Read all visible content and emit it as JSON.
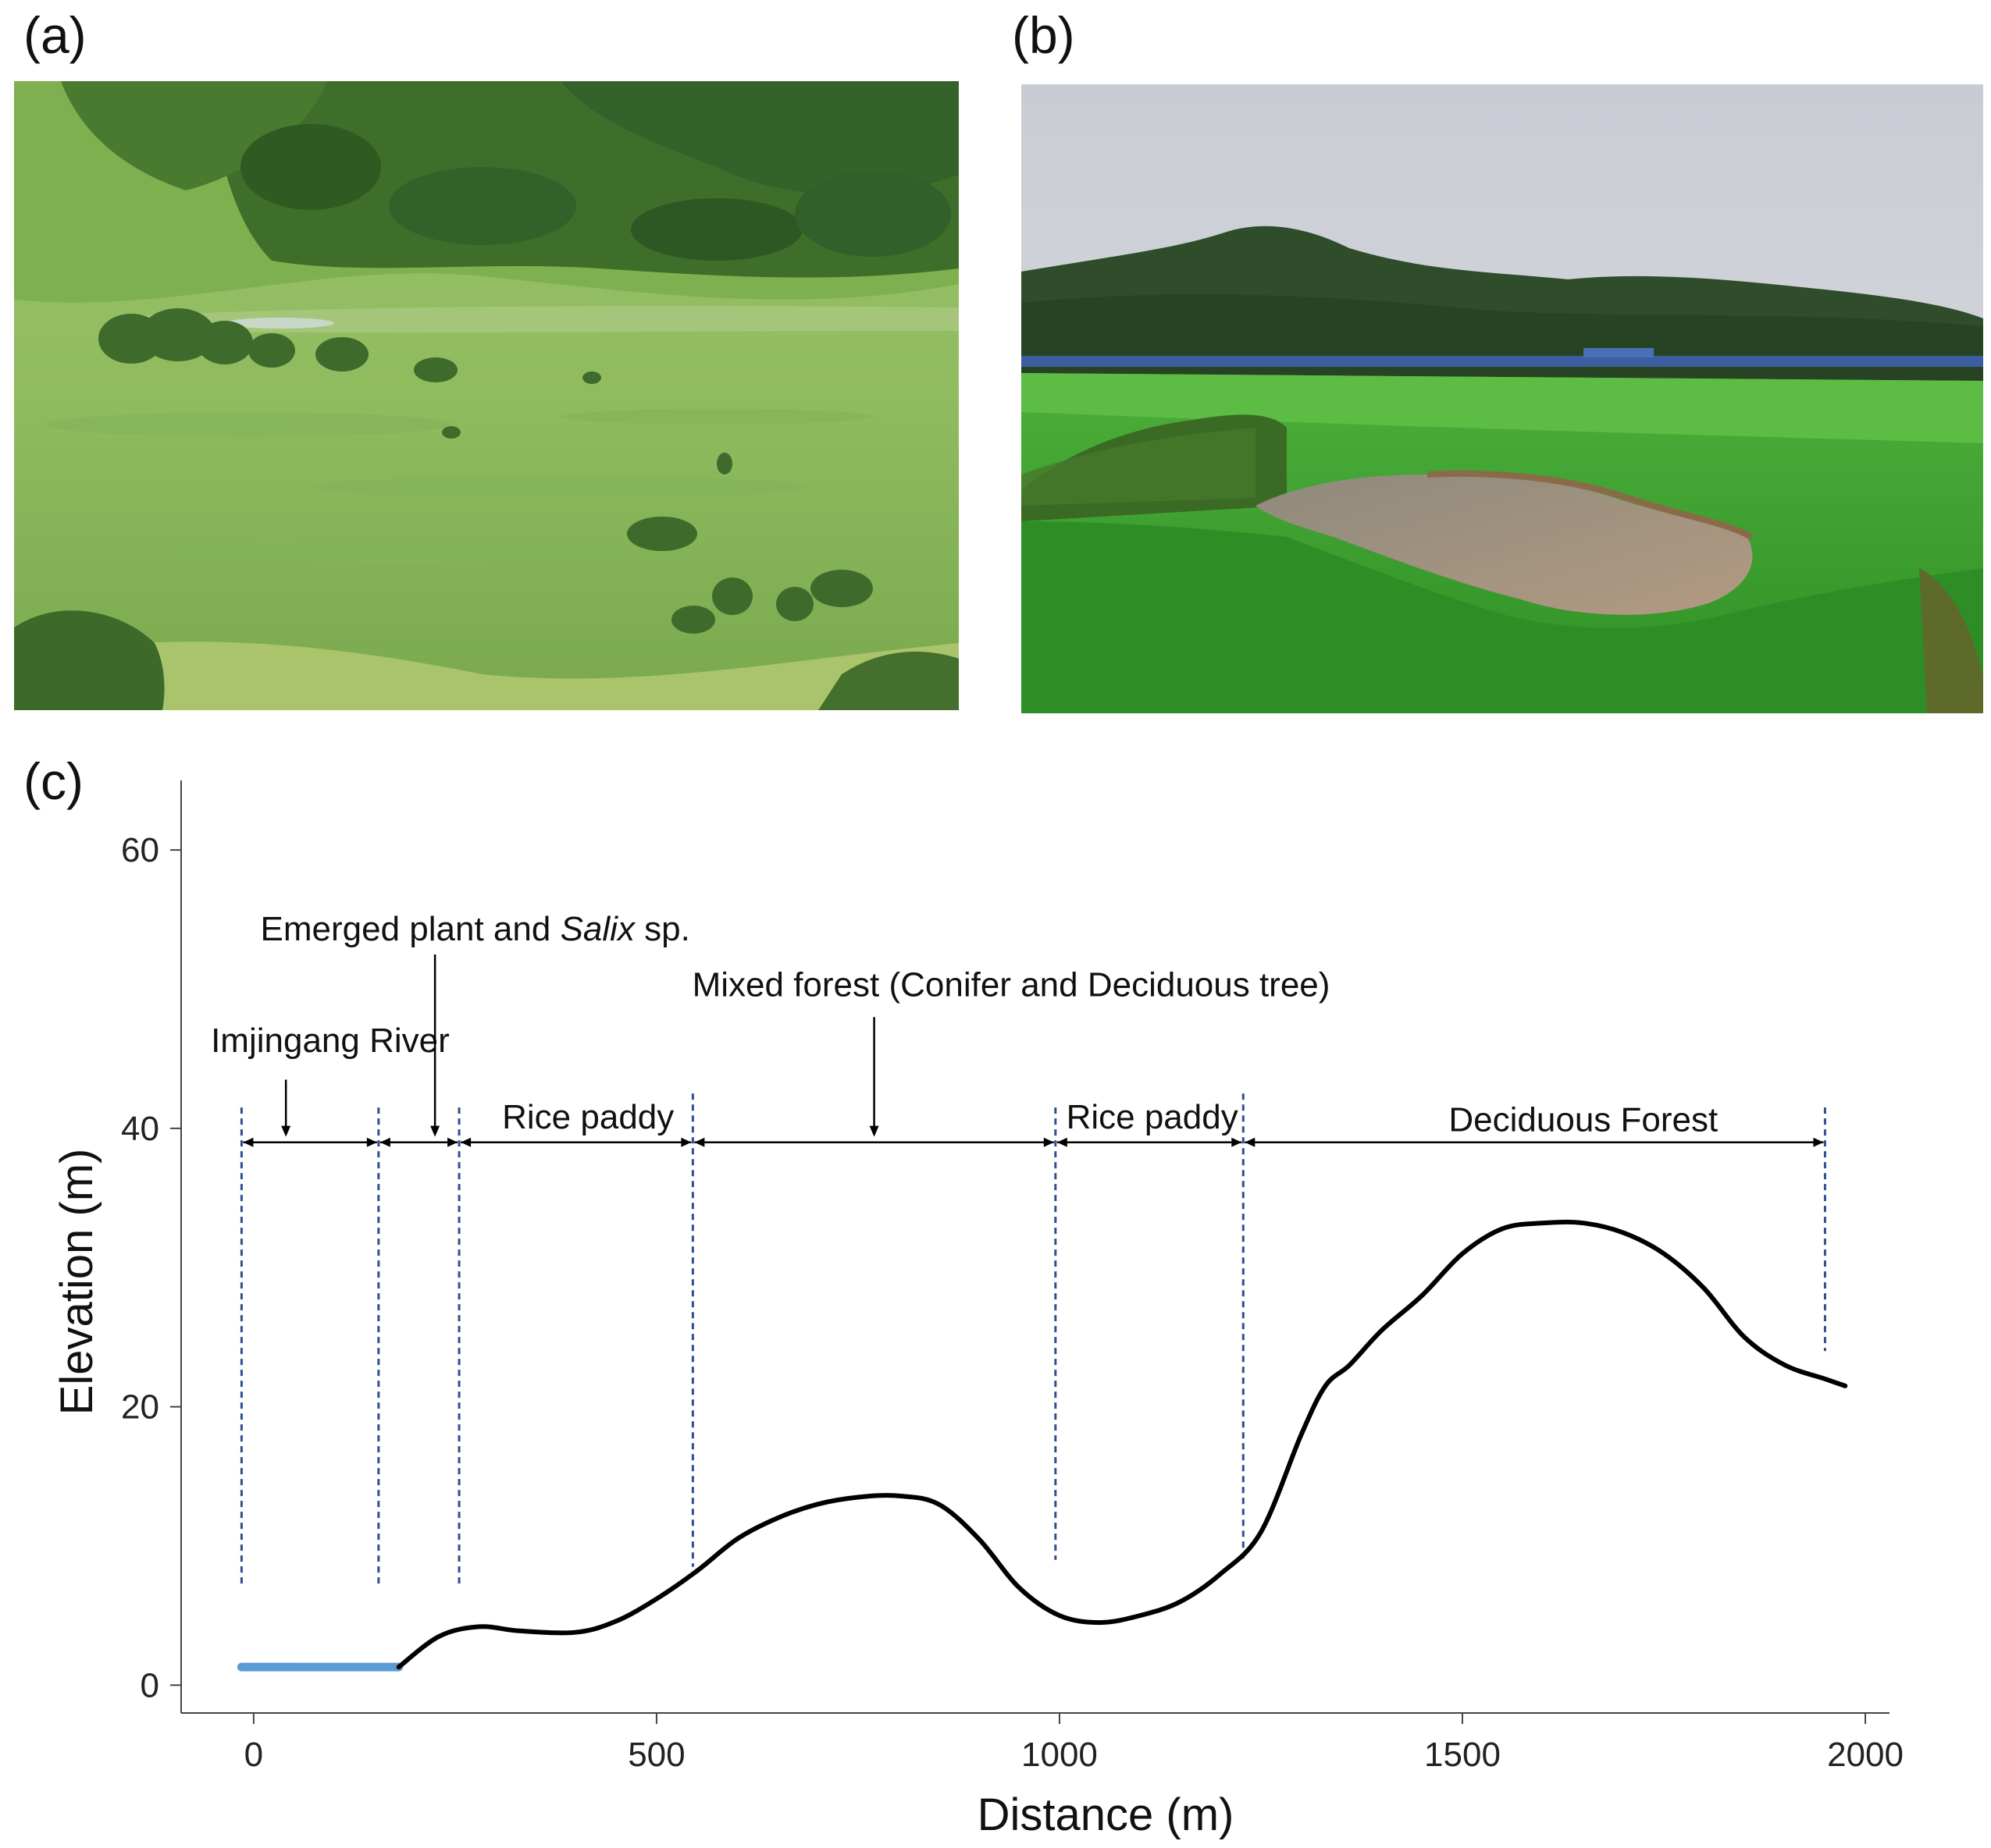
{
  "figure": {
    "panel_a_label": "(a)",
    "panel_b_label": "(b)",
    "panel_c_label": "(c)",
    "photo_a_subject": "floodplain-wetland-grassland",
    "photo_b_subject": "rice-paddy-with-pond"
  },
  "colors": {
    "profile_line": "#000000",
    "river_line": "#5b9bd5",
    "boundary_line": "#2f4f8f",
    "axis": "#444444"
  },
  "chart_data": {
    "type": "line",
    "xlabel": "Distance (m)",
    "ylabel": "Elevation (m)",
    "xlim": [
      -90,
      2030
    ],
    "ylim": [
      -2,
      65
    ],
    "xticks": [
      0,
      500,
      1000,
      1500,
      2000
    ],
    "yticks": [
      0,
      20,
      40,
      60
    ],
    "series": [
      {
        "name": "River water surface",
        "x": [
          -15,
          180
        ],
        "y": [
          1.3,
          1.3
        ]
      },
      {
        "name": "Terrain profile",
        "x": [
          180,
          230,
          280,
          330,
          400,
          450,
          500,
          550,
          600,
          650,
          700,
          750,
          800,
          850,
          900,
          950,
          1000,
          1050,
          1100,
          1150,
          1200,
          1250,
          1300,
          1330,
          1360,
          1400,
          1450,
          1500,
          1550,
          1600,
          1650,
          1700,
          1750,
          1800,
          1850,
          1900,
          1950,
          1975
        ],
        "y": [
          1.3,
          3.5,
          4.2,
          3.9,
          3.8,
          4.6,
          6.2,
          8.2,
          10.5,
          12.0,
          13.0,
          13.5,
          13.6,
          13.0,
          10.5,
          7.0,
          5.0,
          4.5,
          5.0,
          6.0,
          8.0,
          11.0,
          18.0,
          21.5,
          23.0,
          25.5,
          28.0,
          31.0,
          32.8,
          33.2,
          33.2,
          32.5,
          31.0,
          28.5,
          25.0,
          23.0,
          22.0,
          21.5
        ]
      }
    ],
    "boundaries": [
      {
        "x": -15,
        "y_bottom": 7,
        "y_top": 41.5
      },
      {
        "x": 155,
        "y_bottom": 7,
        "y_top": 41.5
      },
      {
        "x": 255,
        "y_bottom": 7,
        "y_top": 41.5
      },
      {
        "x": 545,
        "y_bottom": 8.5,
        "y_top": 42.5
      },
      {
        "x": 995,
        "y_bottom": 9,
        "y_top": 41.5
      },
      {
        "x": 1228,
        "y_bottom": 9,
        "y_top": 42.5
      },
      {
        "x": 1950,
        "y_bottom": 24,
        "y_top": 41.5
      }
    ],
    "zones": [
      {
        "label": "Imjingang River",
        "x_start": -15,
        "x_end": 155
      },
      {
        "label": "Emerged plant and Salix sp.",
        "x_start": 155,
        "x_end": 255
      },
      {
        "label": "Rice paddy",
        "x_start": 255,
        "x_end": 545
      },
      {
        "label": "Mixed forest (Conifer and Deciduous tree)",
        "x_start": 545,
        "x_end": 995
      },
      {
        "label": "Rice paddy",
        "x_start": 995,
        "x_end": 1228
      },
      {
        "label": "Deciduous Forest",
        "x_start": 1228,
        "x_end": 1950
      }
    ],
    "arrow_y": 39,
    "annotations": [
      {
        "text": "Imjingang River",
        "text_x": 95,
        "text_y": 45.5,
        "arrow_x": 40,
        "arrow_from_y": 43.5,
        "arrow_to_y": 39.4
      },
      {
        "text_parts": [
          "Emerged plant and ",
          "Salix",
          " sp."
        ],
        "text_x": 275,
        "text_y": 53.5,
        "arrow_x": 225,
        "arrow_from_y": 52.5,
        "arrow_to_y": 39.4
      },
      {
        "text": "Mixed forest (Conifer and Deciduous tree)",
        "text_x": 940,
        "text_y": 49.5,
        "arrow_x": 770,
        "arrow_from_y": 48.0,
        "arrow_to_y": 39.4
      },
      {
        "text": "Rice paddy",
        "text_x": 415,
        "text_y": 40.0
      },
      {
        "text": "Rice paddy",
        "text_x": 1115,
        "text_y": 40.0
      },
      {
        "text": "Deciduous Forest",
        "text_x": 1650,
        "text_y": 39.8
      }
    ]
  }
}
